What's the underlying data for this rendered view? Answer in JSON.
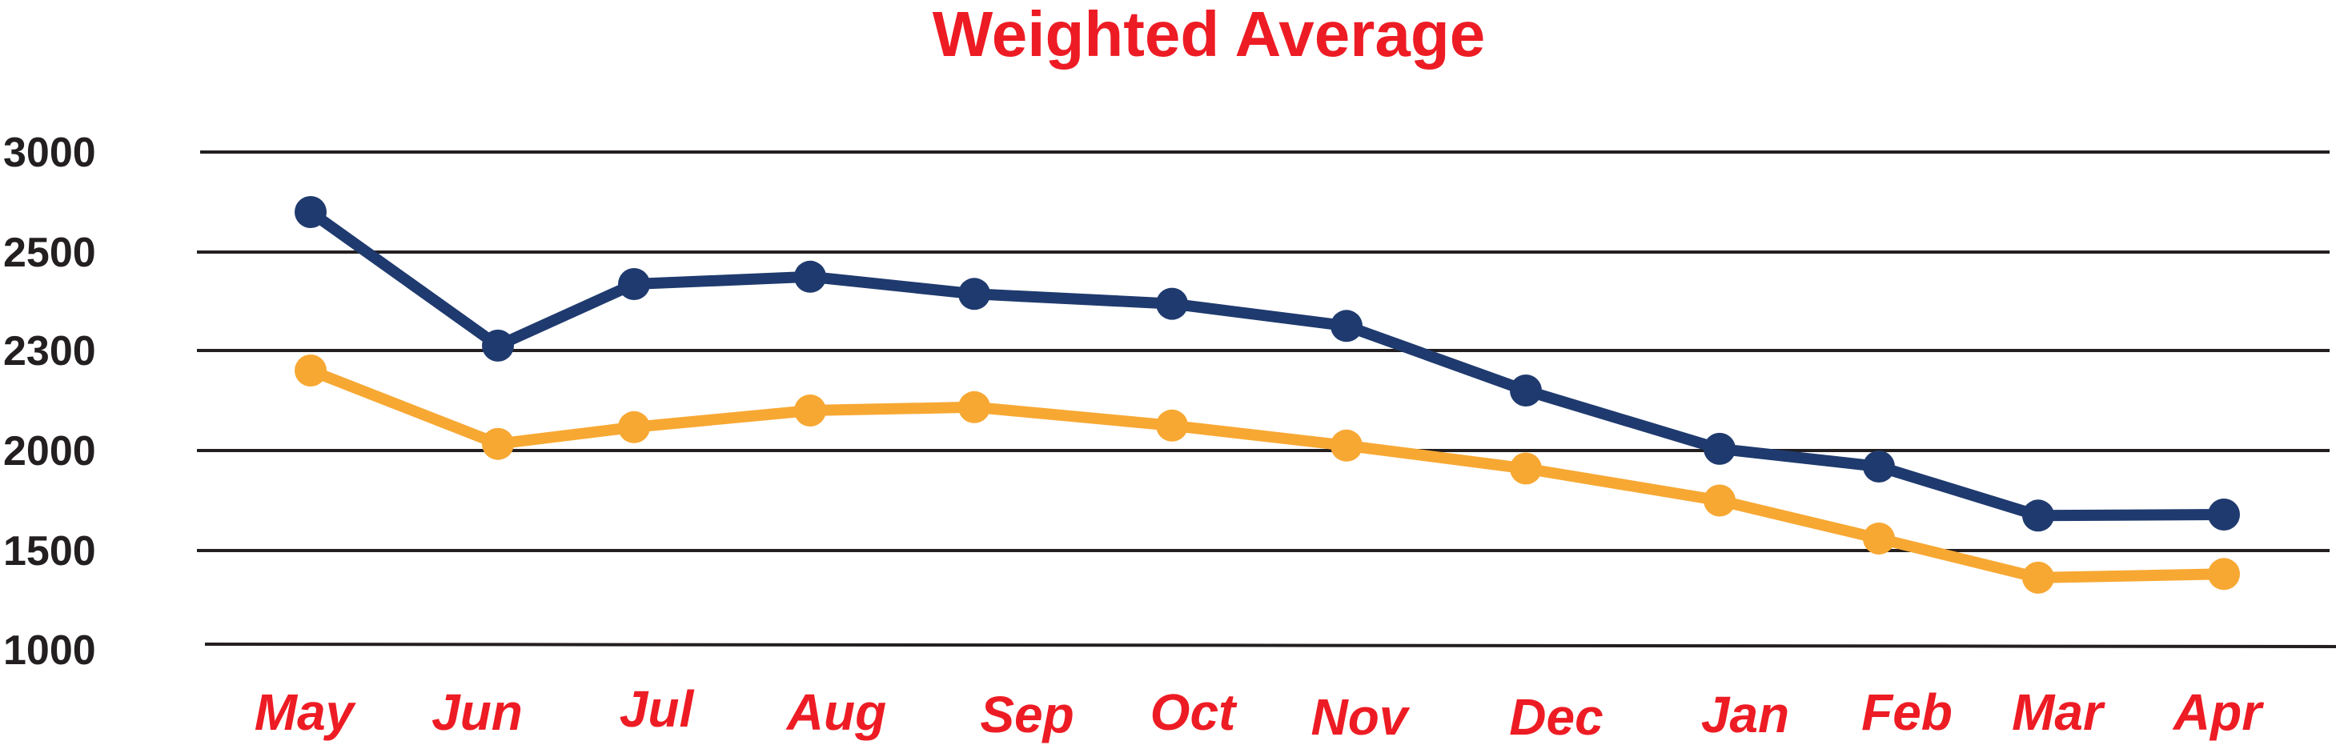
{
  "chart_data": {
    "type": "line",
    "title": "Weighted Average",
    "xlabel": "",
    "ylabel": "",
    "categories": [
      "May",
      "Jun",
      "Jul",
      "Aug",
      "Sep",
      "Oct",
      "Nov",
      "Dec",
      "Jan",
      "Feb",
      "Mar",
      "Apr"
    ],
    "y_ticks": [
      "3000",
      "2500",
      "2300",
      "2000",
      "1500",
      "1000"
    ],
    "grid": true,
    "series": [
      {
        "color": "#1f3a6e",
        "values": [
          2700,
          2310,
          2435,
          2450,
          2415,
          2395,
          2350,
          2180,
          2005,
          1920,
          1675,
          1680
        ]
      },
      {
        "color": "#f7a833",
        "values": [
          2240,
          2020,
          2070,
          2120,
          2130,
          2075,
          2015,
          1910,
          1750,
          1560,
          1355,
          1375
        ]
      }
    ]
  }
}
